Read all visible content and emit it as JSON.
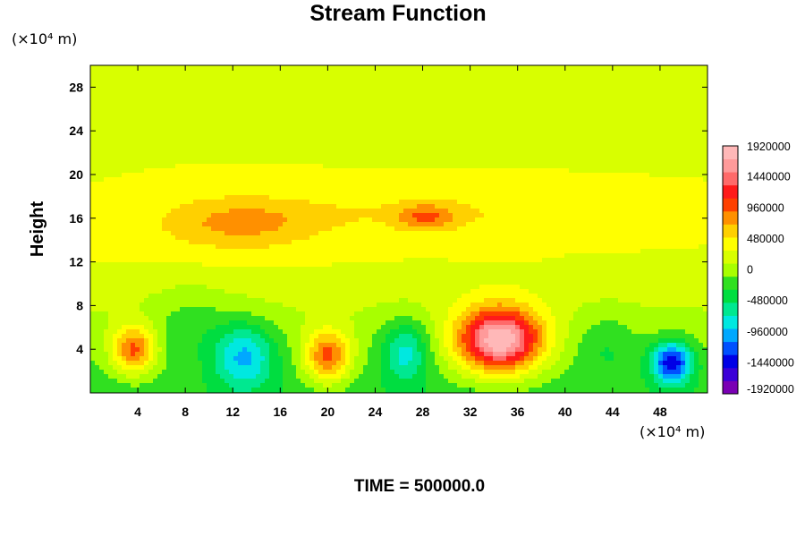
{
  "chart_data": {
    "type": "heatmap",
    "title": "Stream Function",
    "ylabel": "Height",
    "x_unit": "(×10⁴ m)",
    "y_unit": "(×10⁴ m)",
    "xlim": [
      0,
      52
    ],
    "ylim": [
      0,
      30
    ],
    "x_ticks": [
      4,
      8,
      12,
      16,
      20,
      24,
      28,
      32,
      36,
      40,
      44,
      48
    ],
    "y_ticks": [
      4,
      8,
      12,
      16,
      20,
      24,
      28
    ],
    "x_tick_labels": [
      "4",
      "8",
      "12",
      "16",
      "20",
      "24",
      "28",
      "32",
      "36",
      "40",
      "44",
      "48"
    ],
    "y_tick_labels": [
      "4",
      "8",
      "12",
      "16",
      "20",
      "24",
      "28"
    ],
    "colorbar": {
      "min": -1920000,
      "max": 1920000,
      "labels": [
        "1920000",
        "1440000",
        "960000",
        "480000",
        "0",
        "-480000",
        "-960000",
        "-1440000",
        "-1920000"
      ],
      "label_values": [
        1920000,
        1440000,
        960000,
        480000,
        0,
        -480000,
        -960000,
        -1440000,
        -1920000
      ],
      "colors": [
        "#7a00b4",
        "#3b00d8",
        "#0000e6",
        "#0050ff",
        "#00a8ff",
        "#00e8e0",
        "#00e890",
        "#00dd40",
        "#30e020",
        "#a8ff00",
        "#d8ff00",
        "#ffff00",
        "#ffd000",
        "#ff9000",
        "#ff4000",
        "#ff1a1a",
        "#ff6a6a",
        "#ff9a9a",
        "#ffb8b8"
      ]
    },
    "background_value": 300000,
    "features": [
      {
        "x": 3.7,
        "y": 3.9,
        "value": 1050000,
        "sx": 1.8,
        "sy": 2.2
      },
      {
        "x": 13,
        "y": 3.4,
        "value": -850000,
        "sx": 2.6,
        "sy": 3.0
      },
      {
        "x": 20,
        "y": 3.3,
        "value": 1080000,
        "sx": 1.9,
        "sy": 2.4
      },
      {
        "x": 26.5,
        "y": 3.8,
        "value": -700000,
        "sx": 2.0,
        "sy": 2.8
      },
      {
        "x": 34.5,
        "y": 4.8,
        "value": 1950000,
        "sx": 3.6,
        "sy": 3.0
      },
      {
        "x": 49,
        "y": 2.8,
        "value": -1350000,
        "sx": 1.7,
        "sy": 1.9
      },
      {
        "x": 43.5,
        "y": 4.5,
        "value": -250000,
        "sx": 2.6,
        "sy": 3.0
      },
      {
        "x": 8.5,
        "y": 6.5,
        "value": -250000,
        "sx": 3.5,
        "sy": 3.5
      },
      {
        "x": 12.5,
        "y": 15.5,
        "value": 450000,
        "sx": 7.0,
        "sy": 2.5
      },
      {
        "x": 28.3,
        "y": 16.1,
        "value": 500000,
        "sx": 2.5,
        "sy": 1.2
      },
      {
        "x": 30,
        "y": 16.5,
        "value": 200000,
        "sx": 16.0,
        "sy": 2.0
      }
    ],
    "annotation": "TIME = 500000.0"
  }
}
